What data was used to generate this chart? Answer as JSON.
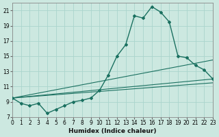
{
  "xlabel": "Humidex (Indice chaleur)",
  "bg_color": "#cce8e0",
  "grid_color": "#aad4cc",
  "line_color": "#1a7060",
  "xlim": [
    0,
    23
  ],
  "ylim": [
    7,
    22
  ],
  "yticks": [
    7,
    9,
    11,
    13,
    15,
    17,
    19,
    21
  ],
  "xticks": [
    0,
    1,
    2,
    3,
    4,
    5,
    6,
    7,
    8,
    9,
    10,
    11,
    12,
    13,
    14,
    15,
    16,
    17,
    18,
    19,
    20,
    21,
    22,
    23
  ],
  "main_line": {
    "x": [
      0,
      1,
      2,
      3,
      4,
      5,
      6,
      7,
      8,
      9,
      10,
      11,
      12,
      13,
      14,
      15,
      16,
      17,
      18,
      19,
      20,
      21,
      22,
      23
    ],
    "y": [
      9.5,
      8.8,
      8.5,
      8.8,
      7.5,
      8.0,
      8.5,
      9.0,
      9.2,
      9.5,
      10.5,
      12.5,
      15.0,
      16.5,
      20.3,
      20.0,
      21.5,
      20.8,
      19.5,
      15.0,
      14.8,
      13.8,
      13.2,
      12.0
    ]
  },
  "fan_lines": [
    {
      "x": [
        0,
        23
      ],
      "y": [
        9.5,
        14.5
      ]
    },
    {
      "x": [
        0,
        23
      ],
      "y": [
        9.5,
        12.0
      ]
    },
    {
      "x": [
        0,
        23
      ],
      "y": [
        9.5,
        11.5
      ]
    }
  ]
}
